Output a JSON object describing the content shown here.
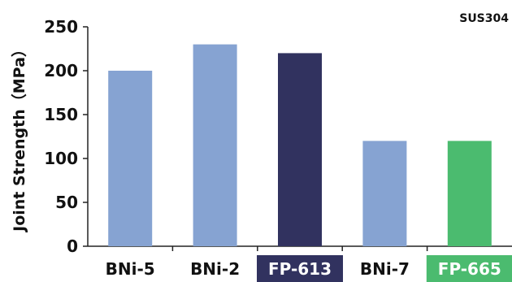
{
  "chart_data": {
    "type": "bar",
    "categories": [
      "BNi-5",
      "BNi-2",
      "FP-613",
      "BNi-7",
      "FP-665"
    ],
    "values": [
      200,
      230,
      220,
      120,
      120
    ],
    "ylabel": "Joint Strength（MPa）",
    "xlabel": "",
    "ylim": [
      0,
      250
    ],
    "yticks": [
      0,
      50,
      100,
      150,
      200,
      250
    ],
    "annotation": "SUS304",
    "grid": false,
    "bar_colors": [
      "#86a3d2",
      "#86a3d2",
      "#31325f",
      "#86a3d2",
      "#4bbb6f"
    ],
    "label_highlight": [
      null,
      null,
      "#31325f",
      null,
      "#4bbb6f"
    ]
  }
}
